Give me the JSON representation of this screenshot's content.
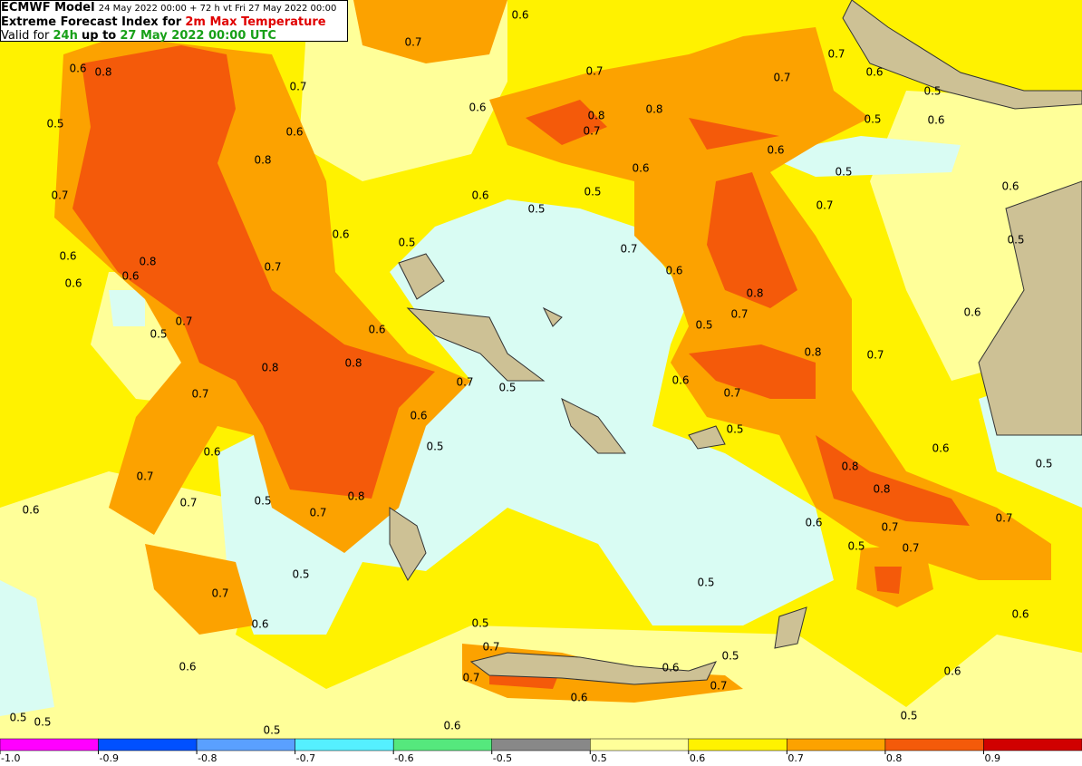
{
  "header": {
    "model": "ECMWF Model",
    "run_info": "24 May 2022 00:00 + 72 h vt Fri 27 May 2022 00:00",
    "title_prefix": "Extreme Forecast Index for",
    "parameter": "2m Max Temperature",
    "valid_prefix": "Valid for",
    "period": "24h",
    "valid_mid": "up to",
    "valid_time": "27 May 2022 00:00 UTC"
  },
  "contour_labels": [
    "0.6",
    "0.7",
    "0.6",
    "0.8",
    "0.7",
    "0.5",
    "0.6",
    "0.8",
    "0.6",
    "0.7",
    "0.8",
    "0.8",
    "0.7",
    "0.7",
    "0.7",
    "0.6",
    "0.5",
    "0.5",
    "0.6",
    "0.6",
    "0.5",
    "0.6",
    "0.5",
    "0.5",
    "0.6",
    "0.7",
    "0.6",
    "0.7",
    "0.5",
    "0.6",
    "0.5",
    "0.6",
    "0.8",
    "0.6",
    "0.6",
    "0.7",
    "0.7",
    "0.6",
    "0.8",
    "0.7",
    "0.5",
    "0.6",
    "0.7",
    "0.5",
    "0.6",
    "0.8",
    "0.7",
    "0.8",
    "0.8",
    "0.7",
    "0.5",
    "0.6",
    "0.7",
    "0.7",
    "0.6",
    "0.5",
    "0.5",
    "0.6",
    "0.6",
    "0.7",
    "0.8",
    "0.5",
    "0.8",
    "0.8",
    "0.5",
    "0.7",
    "0.6",
    "0.7",
    "0.6",
    "0.7",
    "0.7",
    "0.5",
    "0.7",
    "0.5",
    "0.5",
    "0.7",
    "0.6",
    "0.6",
    "0.5",
    "0.7",
    "0.5",
    "0.6",
    "0.6",
    "0.6",
    "0.7",
    "0.7",
    "0.6",
    "0.5",
    "0.5",
    "0.5",
    "0.6",
    "0.5"
  ],
  "colorbar": {
    "ticks": [
      "-1.0",
      "-0.9",
      "-0.8",
      "-0.7",
      "-0.6",
      "-0.5",
      "0.5",
      "0.6",
      "0.7",
      "0.8",
      "0.9"
    ],
    "colors": [
      "#ff00ff",
      "#0050ff",
      "#5aa0ff",
      "#55f0ff",
      "#55e87d",
      "#888888",
      "#ffff99",
      "#fff200",
      "#fca200",
      "#f45a0a",
      "#d00000"
    ]
  }
}
